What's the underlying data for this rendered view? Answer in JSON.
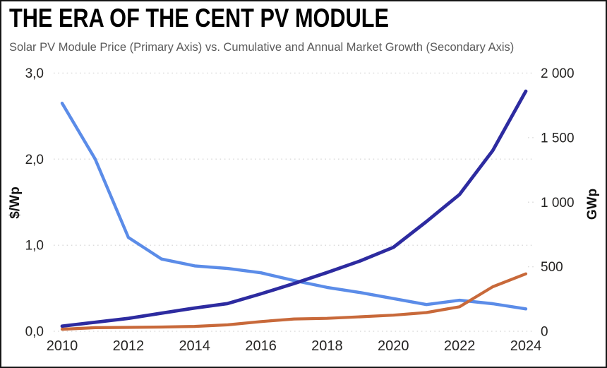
{
  "chart_data": {
    "type": "line",
    "title": "THE ERA OF THE CENT PV MODULE",
    "subtitle": "Solar PV Module Price (Primary Axis) vs. Cumulative and Annual Market Growth (Secondary Axis)",
    "x": [
      2010,
      2011,
      2012,
      2013,
      2014,
      2015,
      2016,
      2017,
      2018,
      2019,
      2020,
      2021,
      2022,
      2023,
      2024
    ],
    "series": [
      {
        "name": "Solar PV Module Price",
        "axis": "primary",
        "unit": "$/Wp",
        "color": "#5b8ce8",
        "stroke_width": 4.4,
        "values": [
          2.65,
          2.0,
          1.09,
          0.84,
          0.76,
          0.73,
          0.68,
          0.59,
          0.51,
          0.45,
          0.38,
          0.31,
          0.36,
          0.32,
          0.26
        ]
      },
      {
        "name": "Cumulative Market Growth",
        "axis": "secondary",
        "unit": "GWp",
        "color": "#2d2ba0",
        "stroke_width": 4.8,
        "values": [
          40,
          70,
          100,
          140,
          180,
          215,
          290,
          370,
          455,
          545,
          650,
          850,
          1060,
          1400,
          1860
        ]
      },
      {
        "name": "Annual Market Growth",
        "axis": "secondary",
        "unit": "GWp",
        "color": "#c8693a",
        "stroke_width": 4.2,
        "values": [
          16,
          28,
          30,
          33,
          38,
          50,
          75,
          95,
          100,
          112,
          125,
          145,
          190,
          345,
          445
        ]
      }
    ],
    "primary_axis": {
      "label": "$/Wp",
      "ticks": [
        "0,0",
        "1,0",
        "2,0",
        "3,0"
      ],
      "tick_values": [
        0,
        1,
        2,
        3
      ],
      "range": [
        0,
        3
      ]
    },
    "secondary_axis": {
      "label": "GWp",
      "ticks": [
        "0",
        "500",
        "1 000",
        "1 500",
        "2 000"
      ],
      "tick_values": [
        0,
        500,
        1000,
        1500,
        2000
      ],
      "range": [
        0,
        2000
      ]
    },
    "x_axis": {
      "tick_labels": [
        "2010",
        "2012",
        "2014",
        "2016",
        "2018",
        "2020",
        "2022",
        "2024"
      ],
      "tick_values": [
        2010,
        2012,
        2014,
        2016,
        2018,
        2020,
        2022,
        2024
      ]
    },
    "grid": {
      "style": "dotted",
      "color": "#dcdcdc",
      "horizontal_only": true
    },
    "legend": "none",
    "colors": {
      "price_line": "#5b8ce8",
      "cumulative_line": "#2d2ba0",
      "annual_line": "#c8693a",
      "title": "#000000",
      "subtitle": "#5a5a5a",
      "tick_label": "#252423",
      "border": "#161616"
    }
  }
}
